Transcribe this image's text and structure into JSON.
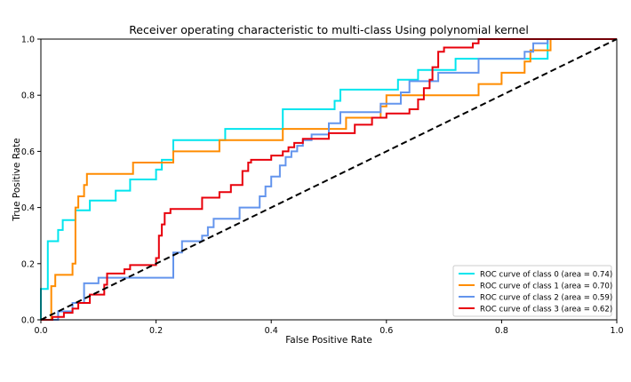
{
  "chart_data": {
    "type": "line",
    "title": "Receiver operating characteristic to multi-class Using polynomial kernel",
    "xlabel": "False Positive Rate",
    "ylabel": "True Positive Rate",
    "xlim": [
      0.0,
      1.0
    ],
    "ylim": [
      0.0,
      1.0
    ],
    "xticks": [
      "0.0",
      "0.2",
      "0.4",
      "0.6",
      "0.8",
      "1.0"
    ],
    "yticks": [
      "0.0",
      "0.2",
      "0.4",
      "0.6",
      "0.8",
      "1.0"
    ],
    "grid": false,
    "legend_position": "lower-right",
    "series": [
      {
        "name": "ROC curve of class 0 (area = 0.74)",
        "color": "#00e5ee",
        "points": [
          [
            0,
            0
          ],
          [
            0,
            0.11
          ],
          [
            0.012,
            0.11
          ],
          [
            0.012,
            0.28
          ],
          [
            0.03,
            0.28
          ],
          [
            0.03,
            0.32
          ],
          [
            0.038,
            0.32
          ],
          [
            0.038,
            0.355
          ],
          [
            0.06,
            0.355
          ],
          [
            0.06,
            0.39
          ],
          [
            0.085,
            0.39
          ],
          [
            0.085,
            0.425
          ],
          [
            0.13,
            0.425
          ],
          [
            0.13,
            0.46
          ],
          [
            0.155,
            0.46
          ],
          [
            0.155,
            0.5
          ],
          [
            0.2,
            0.5
          ],
          [
            0.2,
            0.535
          ],
          [
            0.21,
            0.535
          ],
          [
            0.21,
            0.57
          ],
          [
            0.23,
            0.57
          ],
          [
            0.23,
            0.64
          ],
          [
            0.32,
            0.64
          ],
          [
            0.32,
            0.68
          ],
          [
            0.42,
            0.68
          ],
          [
            0.42,
            0.75
          ],
          [
            0.51,
            0.75
          ],
          [
            0.51,
            0.78
          ],
          [
            0.52,
            0.78
          ],
          [
            0.52,
            0.82
          ],
          [
            0.62,
            0.82
          ],
          [
            0.62,
            0.855
          ],
          [
            0.655,
            0.855
          ],
          [
            0.655,
            0.89
          ],
          [
            0.72,
            0.89
          ],
          [
            0.72,
            0.93
          ],
          [
            0.79,
            0.93
          ],
          [
            0.79,
            0.93
          ],
          [
            0.88,
            0.93
          ],
          [
            0.88,
            1.0
          ],
          [
            1.0,
            1.0
          ]
        ]
      },
      {
        "name": "ROC curve of class 1 (area = 0.70)",
        "color": "#ff8c00",
        "points": [
          [
            0,
            0
          ],
          [
            0.018,
            0
          ],
          [
            0.018,
            0.12
          ],
          [
            0.025,
            0.12
          ],
          [
            0.025,
            0.16
          ],
          [
            0.055,
            0.16
          ],
          [
            0.055,
            0.2
          ],
          [
            0.06,
            0.2
          ],
          [
            0.06,
            0.4
          ],
          [
            0.065,
            0.4
          ],
          [
            0.065,
            0.44
          ],
          [
            0.075,
            0.44
          ],
          [
            0.075,
            0.48
          ],
          [
            0.08,
            0.48
          ],
          [
            0.08,
            0.52
          ],
          [
            0.16,
            0.52
          ],
          [
            0.16,
            0.56
          ],
          [
            0.23,
            0.56
          ],
          [
            0.23,
            0.6
          ],
          [
            0.31,
            0.6
          ],
          [
            0.31,
            0.64
          ],
          [
            0.42,
            0.64
          ],
          [
            0.42,
            0.68
          ],
          [
            0.53,
            0.68
          ],
          [
            0.53,
            0.72
          ],
          [
            0.59,
            0.72
          ],
          [
            0.59,
            0.76
          ],
          [
            0.6,
            0.76
          ],
          [
            0.6,
            0.8
          ],
          [
            0.76,
            0.8
          ],
          [
            0.76,
            0.84
          ],
          [
            0.8,
            0.84
          ],
          [
            0.8,
            0.88
          ],
          [
            0.84,
            0.88
          ],
          [
            0.84,
            0.92
          ],
          [
            0.85,
            0.92
          ],
          [
            0.85,
            0.96
          ],
          [
            0.86,
            0.96
          ],
          [
            0.86,
            0.96
          ],
          [
            0.885,
            0.96
          ],
          [
            0.885,
            1.0
          ],
          [
            1.0,
            1.0
          ]
        ]
      },
      {
        "name": "ROC curve of class 2 (area = 0.59)",
        "color": "#6495ed",
        "points": [
          [
            0,
            0
          ],
          [
            0.03,
            0
          ],
          [
            0.03,
            0.03
          ],
          [
            0.055,
            0.03
          ],
          [
            0.055,
            0.06
          ],
          [
            0.075,
            0.06
          ],
          [
            0.075,
            0.13
          ],
          [
            0.1,
            0.13
          ],
          [
            0.1,
            0.15
          ],
          [
            0.23,
            0.15
          ],
          [
            0.23,
            0.24
          ],
          [
            0.245,
            0.24
          ],
          [
            0.245,
            0.28
          ],
          [
            0.28,
            0.28
          ],
          [
            0.28,
            0.3
          ],
          [
            0.29,
            0.3
          ],
          [
            0.29,
            0.33
          ],
          [
            0.3,
            0.33
          ],
          [
            0.3,
            0.36
          ],
          [
            0.345,
            0.36
          ],
          [
            0.345,
            0.4
          ],
          [
            0.38,
            0.4
          ],
          [
            0.38,
            0.44
          ],
          [
            0.39,
            0.44
          ],
          [
            0.39,
            0.475
          ],
          [
            0.4,
            0.475
          ],
          [
            0.4,
            0.51
          ],
          [
            0.415,
            0.51
          ],
          [
            0.415,
            0.55
          ],
          [
            0.425,
            0.55
          ],
          [
            0.425,
            0.58
          ],
          [
            0.435,
            0.58
          ],
          [
            0.435,
            0.6
          ],
          [
            0.445,
            0.6
          ],
          [
            0.445,
            0.62
          ],
          [
            0.455,
            0.62
          ],
          [
            0.455,
            0.64
          ],
          [
            0.47,
            0.64
          ],
          [
            0.47,
            0.66
          ],
          [
            0.5,
            0.66
          ],
          [
            0.5,
            0.7
          ],
          [
            0.52,
            0.7
          ],
          [
            0.52,
            0.74
          ],
          [
            0.59,
            0.74
          ],
          [
            0.59,
            0.77
          ],
          [
            0.625,
            0.77
          ],
          [
            0.625,
            0.81
          ],
          [
            0.64,
            0.81
          ],
          [
            0.64,
            0.85
          ],
          [
            0.69,
            0.85
          ],
          [
            0.69,
            0.88
          ],
          [
            0.76,
            0.88
          ],
          [
            0.76,
            0.93
          ],
          [
            0.84,
            0.93
          ],
          [
            0.84,
            0.955
          ],
          [
            0.855,
            0.955
          ],
          [
            0.855,
            0.985
          ],
          [
            0.88,
            0.985
          ],
          [
            0.88,
            1.0
          ],
          [
            1.0,
            1.0
          ]
        ]
      },
      {
        "name": "ROC curve of class 3 (area = 0.62)",
        "color": "#e8000b",
        "points": [
          [
            0,
            0
          ],
          [
            0.02,
            0
          ],
          [
            0.02,
            0.01
          ],
          [
            0.04,
            0.01
          ],
          [
            0.04,
            0.025
          ],
          [
            0.055,
            0.025
          ],
          [
            0.055,
            0.04
          ],
          [
            0.065,
            0.04
          ],
          [
            0.065,
            0.06
          ],
          [
            0.085,
            0.06
          ],
          [
            0.085,
            0.09
          ],
          [
            0.11,
            0.09
          ],
          [
            0.11,
            0.125
          ],
          [
            0.115,
            0.125
          ],
          [
            0.115,
            0.165
          ],
          [
            0.145,
            0.165
          ],
          [
            0.145,
            0.18
          ],
          [
            0.155,
            0.18
          ],
          [
            0.155,
            0.195
          ],
          [
            0.2,
            0.195
          ],
          [
            0.2,
            0.22
          ],
          [
            0.205,
            0.22
          ],
          [
            0.205,
            0.3
          ],
          [
            0.21,
            0.3
          ],
          [
            0.21,
            0.34
          ],
          [
            0.215,
            0.34
          ],
          [
            0.215,
            0.38
          ],
          [
            0.225,
            0.38
          ],
          [
            0.225,
            0.395
          ],
          [
            0.28,
            0.395
          ],
          [
            0.28,
            0.435
          ],
          [
            0.31,
            0.435
          ],
          [
            0.31,
            0.455
          ],
          [
            0.33,
            0.455
          ],
          [
            0.33,
            0.48
          ],
          [
            0.35,
            0.48
          ],
          [
            0.35,
            0.53
          ],
          [
            0.36,
            0.53
          ],
          [
            0.36,
            0.56
          ],
          [
            0.365,
            0.56
          ],
          [
            0.365,
            0.57
          ],
          [
            0.4,
            0.57
          ],
          [
            0.4,
            0.585
          ],
          [
            0.42,
            0.585
          ],
          [
            0.42,
            0.6
          ],
          [
            0.43,
            0.6
          ],
          [
            0.43,
            0.615
          ],
          [
            0.44,
            0.615
          ],
          [
            0.44,
            0.63
          ],
          [
            0.455,
            0.63
          ],
          [
            0.455,
            0.645
          ],
          [
            0.5,
            0.645
          ],
          [
            0.5,
            0.665
          ],
          [
            0.545,
            0.665
          ],
          [
            0.545,
            0.695
          ],
          [
            0.575,
            0.695
          ],
          [
            0.575,
            0.72
          ],
          [
            0.6,
            0.72
          ],
          [
            0.6,
            0.735
          ],
          [
            0.64,
            0.735
          ],
          [
            0.64,
            0.75
          ],
          [
            0.655,
            0.75
          ],
          [
            0.655,
            0.785
          ],
          [
            0.665,
            0.785
          ],
          [
            0.665,
            0.825
          ],
          [
            0.675,
            0.825
          ],
          [
            0.675,
            0.855
          ],
          [
            0.68,
            0.855
          ],
          [
            0.68,
            0.9
          ],
          [
            0.69,
            0.9
          ],
          [
            0.69,
            0.955
          ],
          [
            0.7,
            0.955
          ],
          [
            0.7,
            0.97
          ],
          [
            0.75,
            0.97
          ],
          [
            0.75,
            0.985
          ],
          [
            0.76,
            0.985
          ],
          [
            0.76,
            1.0
          ],
          [
            1.0,
            1.0
          ]
        ]
      }
    ],
    "reference_line": {
      "color": "#000000",
      "style": "dashed",
      "points": [
        [
          0,
          0
        ],
        [
          1,
          1
        ]
      ]
    }
  }
}
